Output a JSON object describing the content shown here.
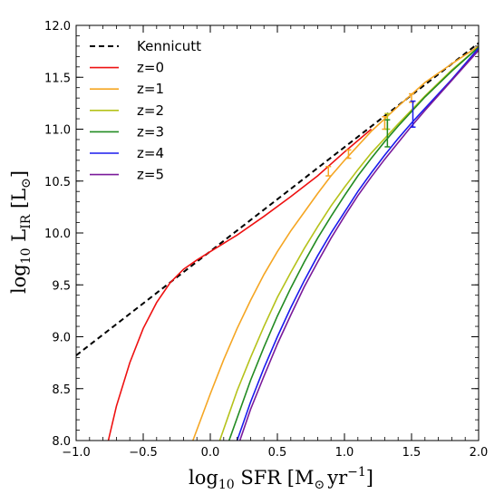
{
  "chart_data": {
    "type": "line",
    "xlabel": {
      "prefix": "log",
      "sub": "10",
      "main": " SFR [M",
      "sun": "⊙",
      "unit": "yr",
      "exp": "−1",
      "close": "]"
    },
    "ylabel": {
      "prefix": "log",
      "sub": "10",
      "main": " L",
      "irsub": "IR",
      "bracket_open": " [L",
      "sun": "⊙",
      "close": "]"
    },
    "xlim": [
      -1.0,
      2.0
    ],
    "ylim": [
      8.0,
      12.0
    ],
    "xticks": [
      -1.0,
      -0.5,
      0.0,
      0.5,
      1.0,
      1.5,
      2.0
    ],
    "yticks": [
      8.0,
      8.5,
      9.0,
      9.5,
      10.0,
      10.5,
      11.0,
      11.5,
      12.0
    ],
    "xtick_labels": [
      "−1.0",
      "−0.5",
      "0.0",
      "0.5",
      "1.0",
      "1.5",
      "2.0"
    ],
    "ytick_labels": [
      "8.0",
      "8.5",
      "9.0",
      "9.5",
      "10.0",
      "10.5",
      "11.0",
      "11.5",
      "12.0"
    ],
    "grid": false,
    "legend_position": "top-left",
    "series": [
      {
        "name": "Kennicutt",
        "color": "#000000",
        "dashed": true,
        "x": [
          -1.0,
          2.0
        ],
        "y": [
          8.82,
          11.83
        ]
      },
      {
        "name": "z=0",
        "color": "#ee1111",
        "dashed": false,
        "x": [
          -0.76,
          -0.7,
          -0.6,
          -0.5,
          -0.4,
          -0.3,
          -0.2,
          -0.1,
          0.0,
          0.1,
          0.2,
          0.4,
          0.6,
          0.8,
          1.0,
          1.2
        ],
        "y": [
          8.0,
          8.33,
          8.75,
          9.08,
          9.33,
          9.52,
          9.65,
          9.74,
          9.82,
          9.9,
          9.98,
          10.16,
          10.35,
          10.55,
          10.78,
          11.0
        ]
      },
      {
        "name": "z=1",
        "color": "#f5a623",
        "dashed": false,
        "x": [
          -0.13,
          0.0,
          0.1,
          0.2,
          0.3,
          0.4,
          0.5,
          0.6,
          0.7,
          0.8,
          0.9,
          1.0,
          1.2,
          1.4,
          1.6,
          1.8,
          2.0
        ],
        "y": [
          8.0,
          8.45,
          8.78,
          9.08,
          9.35,
          9.6,
          9.82,
          10.02,
          10.2,
          10.38,
          10.55,
          10.7,
          10.98,
          11.22,
          11.45,
          11.63,
          11.8
        ]
      },
      {
        "name": "z=2",
        "color": "#b5c21a",
        "dashed": false,
        "x": [
          0.07,
          0.2,
          0.3,
          0.4,
          0.5,
          0.6,
          0.7,
          0.8,
          0.9,
          1.0,
          1.1,
          1.2,
          1.4,
          1.6,
          1.8,
          2.0
        ],
        "y": [
          8.0,
          8.48,
          8.8,
          9.1,
          9.38,
          9.62,
          9.85,
          10.06,
          10.26,
          10.44,
          10.61,
          10.77,
          11.05,
          11.32,
          11.57,
          11.79
        ]
      },
      {
        "name": "z=3",
        "color": "#228b22",
        "dashed": false,
        "x": [
          0.14,
          0.3,
          0.4,
          0.5,
          0.6,
          0.7,
          0.8,
          0.9,
          1.0,
          1.1,
          1.2,
          1.3,
          1.4,
          1.6,
          1.8,
          2.0
        ],
        "y": [
          8.0,
          8.58,
          8.9,
          9.2,
          9.47,
          9.72,
          9.95,
          10.16,
          10.36,
          10.55,
          10.72,
          10.88,
          11.03,
          11.31,
          11.56,
          11.79
        ]
      },
      {
        "name": "z=4",
        "color": "#1a1aee",
        "dashed": false,
        "x": [
          0.2,
          0.3,
          0.4,
          0.5,
          0.6,
          0.7,
          0.8,
          0.9,
          1.0,
          1.1,
          1.2,
          1.3,
          1.4,
          1.5,
          1.6,
          1.8,
          2.0
        ],
        "y": [
          8.0,
          8.37,
          8.7,
          9.0,
          9.28,
          9.54,
          9.78,
          10.0,
          10.2,
          10.4,
          10.58,
          10.75,
          10.91,
          11.06,
          11.2,
          11.48,
          11.78
        ]
      },
      {
        "name": "z=5",
        "color": "#7a1a9a",
        "dashed": false,
        "x": [
          0.22,
          0.3,
          0.4,
          0.5,
          0.6,
          0.7,
          0.8,
          0.9,
          1.0,
          1.1,
          1.2,
          1.3,
          1.4,
          1.5,
          1.6,
          1.8,
          2.0
        ],
        "y": [
          8.0,
          8.3,
          8.62,
          8.93,
          9.21,
          9.48,
          9.72,
          9.95,
          10.16,
          10.36,
          10.54,
          10.71,
          10.87,
          11.03,
          11.18,
          11.47,
          11.76
        ]
      }
    ],
    "error_bars": [
      {
        "color": "#f5a623",
        "x": 0.88,
        "y": 10.6,
        "lo": 10.55,
        "hi": 10.64
      },
      {
        "color": "#f5a623",
        "x": 1.03,
        "y": 10.77,
        "lo": 10.72,
        "hi": 10.8
      },
      {
        "color": "#f5a623",
        "x": 1.3,
        "y": 11.05,
        "lo": 11.0,
        "hi": 11.12
      },
      {
        "color": "#f5a623",
        "x": 1.5,
        "y": 11.3,
        "lo": 11.26,
        "hi": 11.34
      },
      {
        "color": "#b5c21a",
        "x": 1.32,
        "y": 11.1,
        "lo": 11.0,
        "hi": 11.15
      },
      {
        "color": "#228b22",
        "x": 1.32,
        "y": 10.97,
        "lo": 10.83,
        "hi": 11.09
      },
      {
        "color": "#1a1aee",
        "x": 1.51,
        "y": 11.15,
        "lo": 11.02,
        "hi": 11.27
      }
    ]
  }
}
